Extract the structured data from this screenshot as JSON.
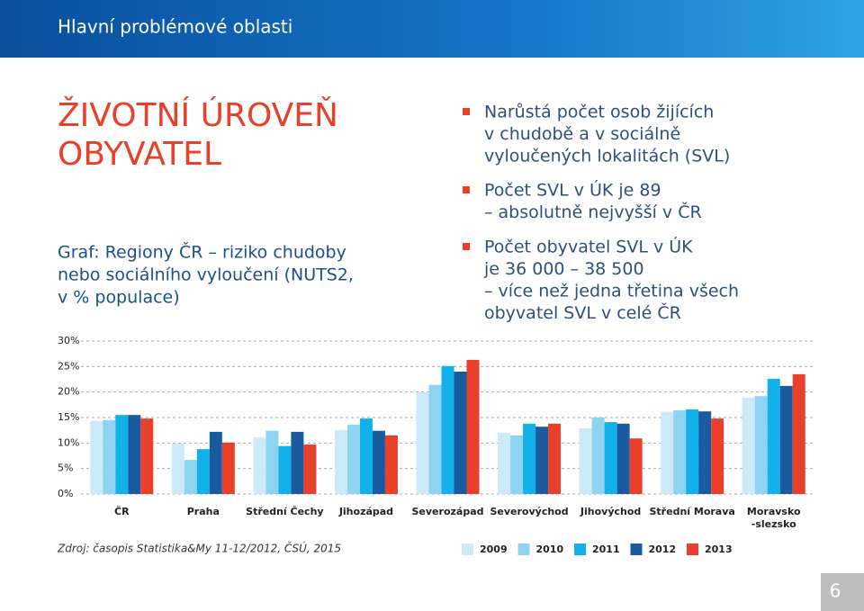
{
  "header": {
    "title": "Hlavní problémové oblasti"
  },
  "heading": [
    "ŽIVOTNÍ ÚROVEŇ",
    "OBYVATEL"
  ],
  "bullets": [
    [
      "Narůstá počet osob žijících",
      "v chudobě a v sociálně",
      "vyloučených lokalitách (SVL)"
    ],
    [
      "Počet SVL v ÚK je 89",
      "– absolutně nejvyšší v ČR"
    ],
    [
      "Počet obyvatel SVL v ÚK",
      "je 36 000 – 38 500",
      "– více než jedna třetina všech",
      "obyvatel SVL v celé ČR"
    ]
  ],
  "source": "Zdroj: časopis Statistika&My 11-12/2012, ČSÚ, 2015",
  "page_number": "6",
  "chart_data": {
    "type": "bar",
    "title": [
      "Graf: Regiony ČR – riziko chudoby",
      "nebo sociálního vyloučení (NUTS2,",
      "v % populace)"
    ],
    "categories": [
      "ČR",
      "Praha",
      "Střední Čechy",
      "Jihozápad",
      "Severozápad",
      "Severovýchod",
      "Jihovýchod",
      "Střední Morava",
      "Moravsko\n-slezsko"
    ],
    "series": [
      {
        "name": "2009",
        "color": "#cdeaf8",
        "values": [
          14.3,
          9.9,
          11.1,
          12.5,
          19.9,
          12.0,
          12.9,
          16.1,
          18.9
        ]
      },
      {
        "name": "2010",
        "color": "#8fd3f2",
        "values": [
          14.5,
          6.7,
          12.4,
          13.6,
          21.4,
          11.5,
          15.0,
          16.4,
          19.2
        ]
      },
      {
        "name": "2011",
        "color": "#12b1ea",
        "values": [
          15.5,
          8.8,
          9.4,
          14.8,
          25.1,
          13.8,
          14.1,
          16.6,
          22.6
        ]
      },
      {
        "name": "2012",
        "color": "#1a5aa0",
        "values": [
          15.5,
          12.2,
          12.2,
          12.4,
          24.0,
          13.2,
          13.8,
          16.2,
          21.2
        ]
      },
      {
        "name": "2013",
        "color": "#e8402a",
        "values": [
          14.8,
          10.1,
          9.7,
          11.5,
          26.3,
          13.8,
          10.9,
          14.8,
          23.5
        ]
      }
    ],
    "ylim": [
      0,
      30
    ],
    "yticks": [
      {
        "value": 0,
        "label": "0%"
      },
      {
        "value": 5,
        "label": "5%"
      },
      {
        "value": 10,
        "label": "10%"
      },
      {
        "value": 15,
        "label": "15%"
      },
      {
        "value": 20,
        "label": "20%"
      },
      {
        "value": 25,
        "label": "25%"
      },
      {
        "value": 30,
        "label": "30%"
      }
    ],
    "grid": true
  }
}
